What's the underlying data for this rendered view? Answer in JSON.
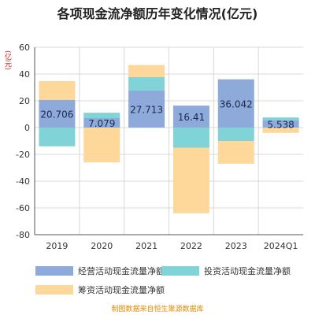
{
  "title": "各项现金流净额历年变化情况(亿元)",
  "unit_label": "(亿元)",
  "source": "制图数据来自恒生聚源数据库",
  "colors": {
    "operating": "#8eaadb",
    "investing": "#80d4d8",
    "financing": "#fdd89a",
    "label_text": "#1a2a4a"
  },
  "legend": {
    "operating": "经营活动现金流量净额",
    "investing": "投资活动现金流量净额",
    "financing": "筹资活动现金流量净额"
  },
  "chart_data": {
    "type": "bar",
    "stacked": true,
    "title": "各项现金流净额历年变化情况(亿元)",
    "ylabel": "(亿元)",
    "ylim": [
      -80,
      60
    ],
    "yticks": [
      60,
      40,
      20,
      0,
      -20,
      -40,
      -60,
      -80
    ],
    "grid": true,
    "legend_position": "bottom",
    "categories": [
      "2019",
      "2020",
      "2021",
      "2022",
      "2023",
      "2024Q1"
    ],
    "series": [
      {
        "name": "经营活动现金流量净额",
        "key": "operating",
        "values": [
          20.706,
          7.079,
          27.713,
          16.41,
          36.042,
          5.538
        ]
      },
      {
        "name": "投资活动现金流量净额",
        "key": "investing",
        "values": [
          -14,
          4,
          10,
          -15,
          -10,
          2
        ]
      },
      {
        "name": "筹资活动现金流量净额",
        "key": "financing",
        "values": [
          14,
          -26,
          9,
          -49,
          -17,
          -4
        ]
      }
    ],
    "data_labels": [
      "20.706",
      "7.079",
      "27.713",
      "16.41",
      "36.042",
      "5.538"
    ]
  }
}
